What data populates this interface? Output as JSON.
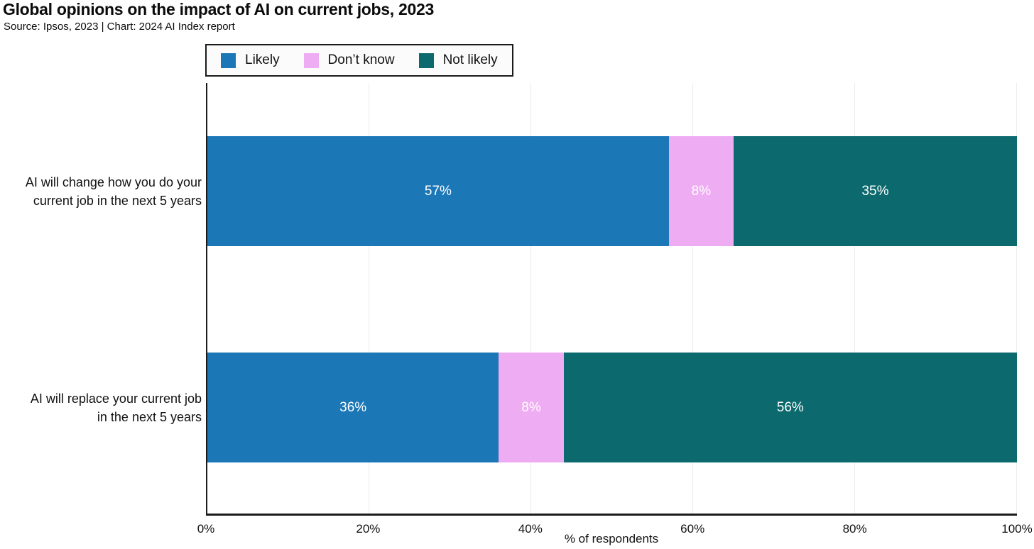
{
  "title": "Global opinions on the impact of AI on current jobs, 2023",
  "subtitle": "Source: Ipsos, 2023 | Chart: 2024 AI Index report",
  "colors": {
    "likely": "#1c77b7",
    "dont_know": "#eeadf2",
    "not_likely": "#0c696e",
    "grid": "#ececec",
    "axis": "#1a1a1a",
    "bar_value_text": "#ffffff",
    "background": "#ffffff"
  },
  "legend": {
    "items": [
      {
        "label": "Likely",
        "color": "#1c77b7"
      },
      {
        "label": "Don’t know",
        "color": "#eeadf2"
      },
      {
        "label": "Not likely",
        "color": "#0c696e"
      }
    ]
  },
  "chart_data": {
    "type": "bar",
    "orientation": "horizontal",
    "stacked": true,
    "title": "Global opinions on the impact of AI on current jobs, 2023",
    "subtitle": "Source: Ipsos, 2023 | Chart: 2024 AI Index report",
    "categories": [
      "AI will change how you do your current job in the next 5 years",
      "AI will replace your current job in the next 5 years"
    ],
    "categories_lines": [
      [
        "AI will change how you do your",
        "current job in the next 5 years"
      ],
      [
        "AI will replace your current job",
        "in the next 5 years"
      ]
    ],
    "series": [
      {
        "name": "Likely",
        "values": [
          57,
          36
        ],
        "color": "#1c77b7"
      },
      {
        "name": "Don’t know",
        "values": [
          8,
          8
        ],
        "color": "#eeadf2"
      },
      {
        "name": "Not likely",
        "values": [
          35,
          56
        ],
        "color": "#0c696e"
      }
    ],
    "value_label_format": "{v}%",
    "xlabel": "% of respondents",
    "xlim": [
      0,
      100
    ],
    "x_ticks": [
      "0%",
      "20%",
      "40%",
      "60%",
      "80%",
      "100%"
    ],
    "x_tick_values": [
      0,
      20,
      40,
      60,
      80,
      100
    ],
    "grid": "vertical",
    "legend_position": "top"
  }
}
